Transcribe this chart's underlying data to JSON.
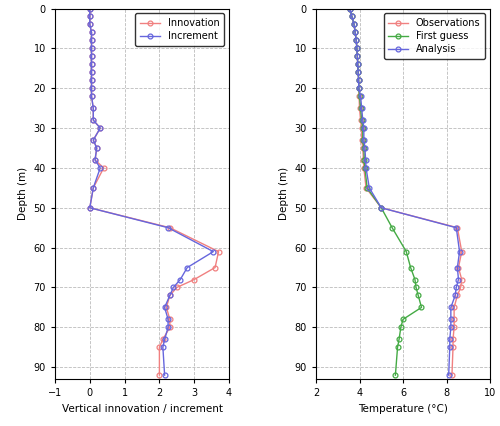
{
  "left_panel": {
    "xlabel": "Vertical innovation / increment",
    "ylabel": "Depth (m)",
    "xlim": [
      -1,
      4
    ],
    "ylim": [
      93,
      0
    ],
    "xticks": [
      -1,
      0,
      1,
      2,
      3,
      4
    ],
    "yticks": [
      0,
      10,
      20,
      30,
      40,
      50,
      60,
      70,
      80,
      90
    ],
    "innovation": {
      "depth": [
        0,
        2,
        4,
        6,
        8,
        10,
        12,
        14,
        16,
        18,
        20,
        22,
        25,
        28,
        30,
        33,
        35,
        38,
        40,
        45,
        50,
        55,
        61,
        65,
        68,
        70,
        72,
        75,
        78,
        80,
        83,
        85,
        92
      ],
      "value": [
        0.0,
        0.0,
        0.0,
        0.05,
        0.05,
        0.05,
        0.05,
        0.05,
        0.05,
        0.05,
        0.05,
        0.05,
        0.1,
        0.1,
        0.3,
        0.1,
        0.2,
        0.15,
        0.4,
        0.1,
        0.0,
        2.3,
        3.7,
        3.6,
        3.0,
        2.5,
        2.3,
        2.2,
        2.3,
        2.3,
        2.1,
        2.0,
        2.0
      ],
      "color": "#f08080",
      "label": "Innovation"
    },
    "increment": {
      "depth": [
        0,
        2,
        4,
        6,
        8,
        10,
        12,
        14,
        16,
        18,
        20,
        22,
        25,
        28,
        30,
        33,
        35,
        38,
        40,
        45,
        50,
        55,
        61,
        65,
        68,
        70,
        72,
        75,
        78,
        80,
        83,
        85,
        92
      ],
      "value": [
        0.0,
        0.0,
        0.0,
        0.05,
        0.05,
        0.05,
        0.05,
        0.05,
        0.05,
        0.05,
        0.05,
        0.05,
        0.1,
        0.1,
        0.3,
        0.1,
        0.2,
        0.15,
        0.3,
        0.1,
        0.0,
        2.25,
        3.55,
        2.8,
        2.6,
        2.4,
        2.3,
        2.15,
        2.25,
        2.25,
        2.15,
        2.1,
        2.15
      ],
      "color": "#6666dd",
      "label": "Increment"
    }
  },
  "right_panel": {
    "xlabel": "Temperature (°C)",
    "ylabel": "Depth (m)",
    "xlim": [
      2,
      10
    ],
    "ylim": [
      93,
      0
    ],
    "xticks": [
      2,
      4,
      6,
      8,
      10
    ],
    "yticks": [
      0,
      10,
      20,
      30,
      40,
      50,
      60,
      70,
      80,
      90
    ],
    "observations": {
      "depth": [
        0,
        2,
        4,
        6,
        8,
        10,
        12,
        14,
        16,
        18,
        20,
        22,
        25,
        28,
        30,
        33,
        35,
        38,
        40,
        45,
        50,
        55,
        61,
        65,
        68,
        70,
        72,
        75,
        78,
        80,
        83,
        85,
        92
      ],
      "value": [
        3.55,
        3.65,
        3.75,
        3.8,
        3.85,
        3.88,
        3.9,
        3.92,
        3.94,
        3.96,
        3.97,
        3.98,
        4.0,
        4.05,
        4.1,
        4.1,
        4.15,
        4.18,
        4.2,
        4.3,
        5.0,
        8.5,
        8.7,
        8.55,
        8.7,
        8.65,
        8.5,
        8.35,
        8.35,
        8.35,
        8.3,
        8.3,
        8.25
      ],
      "color": "#f08080",
      "label": "Observations"
    },
    "first_guess": {
      "depth": [
        0,
        2,
        4,
        6,
        8,
        10,
        12,
        14,
        16,
        18,
        20,
        22,
        25,
        28,
        30,
        33,
        35,
        38,
        40,
        45,
        50,
        55,
        61,
        65,
        68,
        70,
        72,
        75,
        78,
        80,
        83,
        85,
        92
      ],
      "value": [
        3.55,
        3.65,
        3.75,
        3.8,
        3.85,
        3.88,
        3.9,
        3.92,
        3.94,
        3.96,
        3.97,
        4.0,
        4.05,
        4.1,
        4.15,
        4.15,
        4.2,
        4.22,
        4.25,
        4.35,
        5.0,
        5.5,
        6.15,
        6.35,
        6.55,
        6.6,
        6.7,
        6.85,
        6.0,
        5.9,
        5.82,
        5.75,
        5.65
      ],
      "color": "#44aa44",
      "label": "First guess"
    },
    "analysis": {
      "depth": [
        0,
        2,
        4,
        6,
        8,
        10,
        12,
        14,
        16,
        18,
        20,
        22,
        25,
        28,
        30,
        33,
        35,
        38,
        40,
        45,
        50,
        55,
        61,
        65,
        68,
        70,
        72,
        75,
        78,
        80,
        83,
        85,
        92
      ],
      "value": [
        3.55,
        3.65,
        3.75,
        3.8,
        3.85,
        3.88,
        3.9,
        3.92,
        3.94,
        3.96,
        3.97,
        4.05,
        4.1,
        4.15,
        4.2,
        4.2,
        4.25,
        4.28,
        4.3,
        4.45,
        5.0,
        8.45,
        8.6,
        8.5,
        8.55,
        8.45,
        8.4,
        8.2,
        8.2,
        8.2,
        8.15,
        8.15,
        8.1
      ],
      "color": "#6666dd",
      "label": "Analysis"
    }
  },
  "bg_color": "#ffffff",
  "grid_color": "#bbbbbb",
  "grid_style": "--",
  "figure_width": 5.0,
  "figure_height": 4.26,
  "dpi": 100
}
